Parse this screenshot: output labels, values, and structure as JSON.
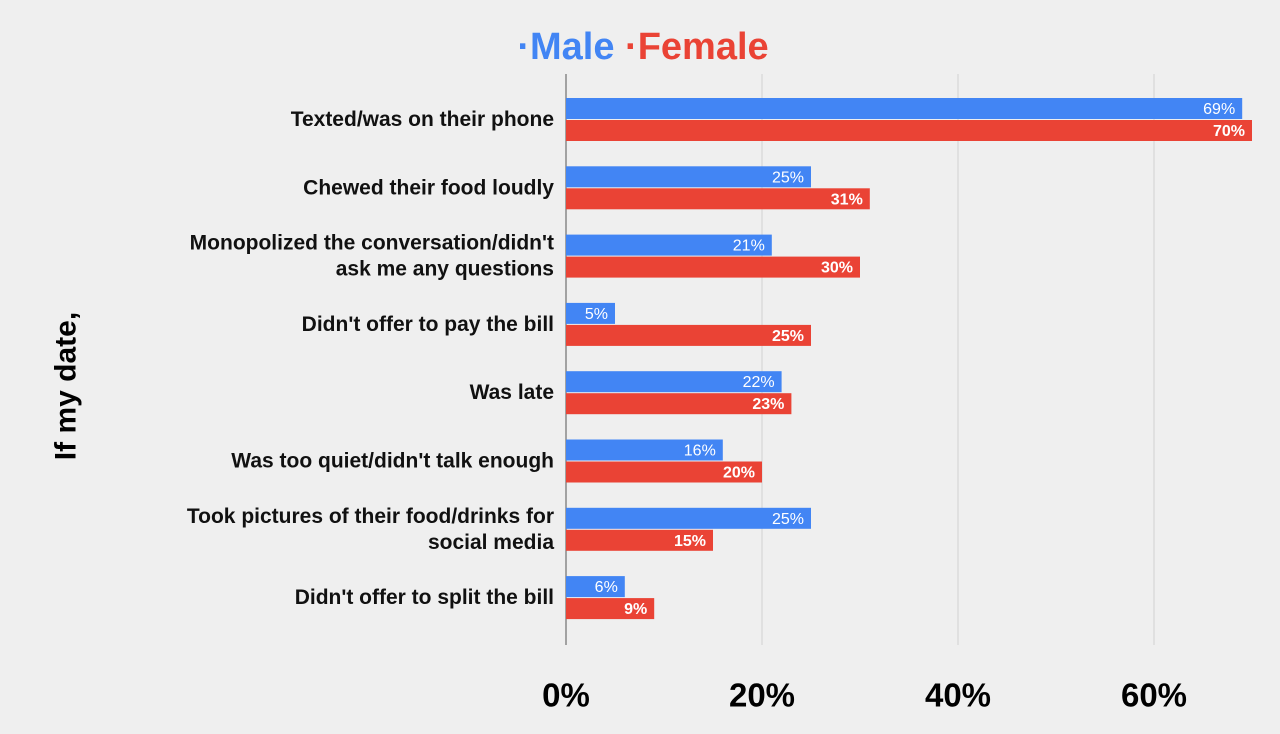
{
  "chart_data": {
    "type": "bar",
    "orientation": "horizontal",
    "ylabel": "If my date,",
    "xlabel": "",
    "xlim": [
      0,
      70
    ],
    "x_ticks": [
      0,
      20,
      40,
      60
    ],
    "x_tick_labels": [
      "0%",
      "20%",
      "40%",
      "60%"
    ],
    "grid": true,
    "legend_position": "top-center",
    "legend_marker": "·",
    "categories": [
      [
        "Texted/was on their phone"
      ],
      [
        "Chewed their food loudly"
      ],
      [
        "Monopolized the conversation/didn't",
        "ask me any questions"
      ],
      [
        "Didn't offer to pay the bill"
      ],
      [
        "Was late"
      ],
      [
        "Was too quiet/didn't talk enough"
      ],
      [
        "Took pictures of their food/drinks for",
        "social media"
      ],
      [
        "Didn't offer to split the bill"
      ]
    ],
    "series": [
      {
        "name": "Male",
        "color": "#4285f4",
        "values": [
          69,
          25,
          21,
          5,
          22,
          16,
          25,
          6
        ],
        "labels": [
          "69%",
          "25%",
          "21%",
          "5%",
          "22%",
          "16%",
          "25%",
          "6%"
        ]
      },
      {
        "name": "Female",
        "color": "#ea4335",
        "values": [
          70,
          31,
          30,
          25,
          23,
          20,
          15,
          9
        ],
        "labels": [
          "70%",
          "31%",
          "30%",
          "25%",
          "23%",
          "20%",
          "15%",
          "9%"
        ]
      }
    ]
  }
}
